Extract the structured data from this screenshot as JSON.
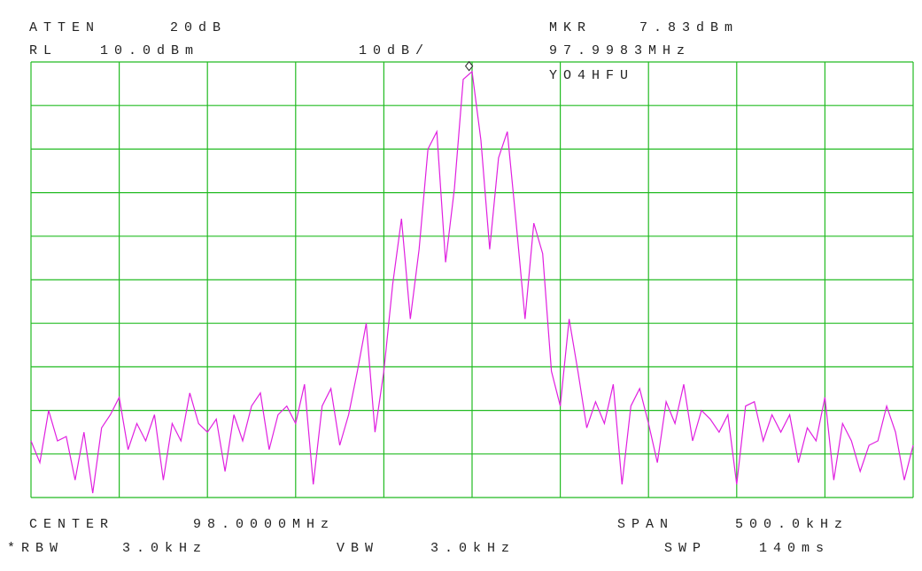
{
  "chart_data": {
    "type": "line",
    "annotations": [
      "ATTEN",
      "20dB",
      "MKR",
      "7.83dBm",
      "RL",
      "10.0dBm",
      "10dB/",
      "97.9983MHz",
      "YO4HFU",
      "CENTER",
      "98.0000MHz",
      "SPAN",
      "500.0kHz",
      "*RBW",
      "3.0kHz",
      "VBW",
      "3.0kHz",
      "SWP",
      "140ms"
    ],
    "x": [
      97.75,
      97.755,
      97.76,
      97.765,
      97.77,
      97.775,
      97.78,
      97.785,
      97.79,
      97.795,
      97.8,
      97.805,
      97.81,
      97.815,
      97.82,
      97.825,
      97.83,
      97.835,
      97.84,
      97.845,
      97.85,
      97.855,
      97.86,
      97.865,
      97.87,
      97.875,
      97.88,
      97.885,
      97.89,
      97.895,
      97.9,
      97.905,
      97.91,
      97.915,
      97.92,
      97.925,
      97.93,
      97.935,
      97.94,
      97.945,
      97.95,
      97.955,
      97.96,
      97.965,
      97.97,
      97.975,
      97.98,
      97.985,
      97.99,
      97.995,
      98.0,
      98.005,
      98.01,
      98.015,
      98.02,
      98.025,
      98.03,
      98.035,
      98.04,
      98.045,
      98.05,
      98.055,
      98.06,
      98.065,
      98.07,
      98.075,
      98.08,
      98.085,
      98.09,
      98.095,
      98.1,
      98.105,
      98.11,
      98.115,
      98.12,
      98.125,
      98.13,
      98.135,
      98.14,
      98.145,
      98.15,
      98.155,
      98.16,
      98.165,
      98.17,
      98.175,
      98.18,
      98.185,
      98.19,
      98.195,
      98.2,
      98.205,
      98.21,
      98.215,
      98.22,
      98.225,
      98.23,
      98.235,
      98.24,
      98.245,
      98.25
    ],
    "values": [
      -77,
      -82,
      -70,
      -77,
      -76,
      -86,
      -75,
      -89,
      -74,
      -71,
      -67,
      -79,
      -73,
      -77,
      -71,
      -86,
      -73,
      -77,
      -66,
      -73,
      -75,
      -72,
      -84,
      -71,
      -77,
      -69,
      -66,
      -79,
      -71,
      -69,
      -73,
      -64,
      -87,
      -69,
      -65,
      -78,
      -71,
      -61,
      -50,
      -75,
      -61,
      -41,
      -26,
      -49,
      -33,
      -10,
      -6,
      -36,
      -19,
      6,
      7.8,
      -8,
      -33,
      -12,
      -6,
      -27,
      -49,
      -27,
      -34,
      -61,
      -69,
      -49,
      -61,
      -74,
      -68,
      -73,
      -64,
      -87,
      -69,
      -65,
      -73,
      -82,
      -68,
      -73,
      -64,
      -77,
      -70,
      -72,
      -75,
      -71,
      -87,
      -69,
      -68,
      -77,
      -71,
      -75,
      -71,
      -82,
      -74,
      -77,
      -67,
      -86,
      -73,
      -77,
      -84,
      -78,
      -77,
      -69,
      -75,
      -86,
      -78
    ],
    "color": "#e020e0",
    "marker": {
      "x": 97.9983,
      "y": 7.83
    },
    "xlim": [
      97.75,
      98.25
    ],
    "xticks": [
      97.75,
      97.8,
      97.85,
      97.9,
      97.95,
      98.0,
      98.05,
      98.1,
      98.15,
      98.2,
      98.25
    ],
    "ylim": [
      -90,
      10
    ],
    "yticks": [
      -90,
      -80,
      -70,
      -60,
      -50,
      -40,
      -30,
      -20,
      -10,
      0,
      10
    ],
    "grid": true,
    "grid_color": "#22bb22"
  }
}
